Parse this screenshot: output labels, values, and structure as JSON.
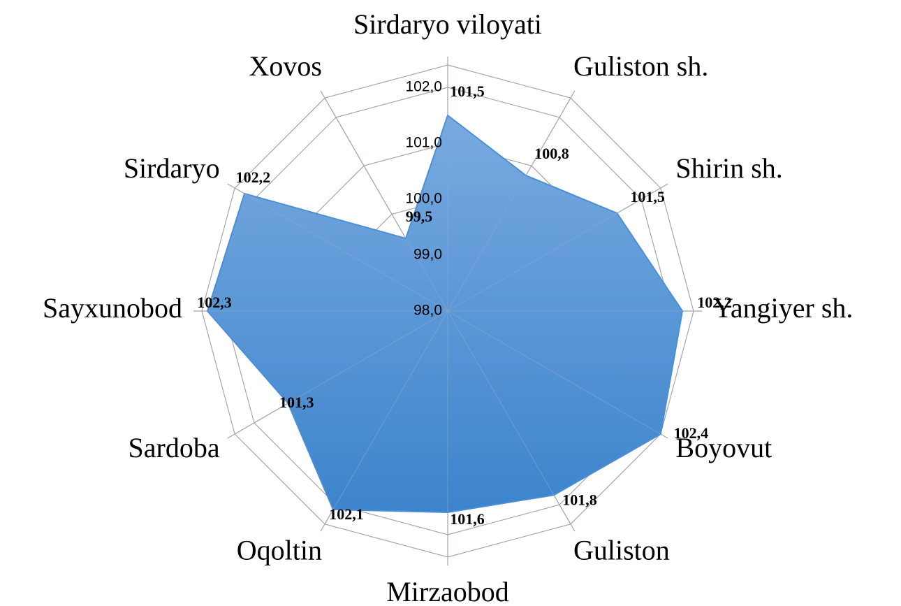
{
  "chart_data": {
    "type": "radar",
    "categories": [
      "Sirdaryo viloyati",
      "Guliston  sh.",
      "Shirin   sh.",
      "Yangiyer   sh.",
      "Boyovut",
      "Guliston",
      "Mirzaobod",
      "Oqoltin",
      "Sardoba",
      "Sayxunobod",
      "Sirdaryo",
      "Xovos"
    ],
    "values": [
      101.5,
      100.8,
      101.5,
      102.2,
      102.4,
      101.8,
      101.6,
      102.1,
      101.3,
      102.3,
      102.2,
      99.5
    ],
    "value_labels": [
      "101,5",
      "100,8",
      "101,5",
      "102,2",
      "102,4",
      "101,8",
      "101,6",
      "102,1",
      "101,3",
      "102,3",
      "102,2",
      "99,5"
    ],
    "color": "#4a8fd6",
    "ylim": [
      98,
      102.4
    ],
    "yticks": [
      {
        "value": 98,
        "label": "98,0"
      },
      {
        "value": 99,
        "label": "99,0"
      },
      {
        "value": 100,
        "label": "100,0"
      },
      {
        "value": 101,
        "label": "101,0"
      },
      {
        "value": 102,
        "label": "102,0"
      }
    ],
    "grid": true
  }
}
